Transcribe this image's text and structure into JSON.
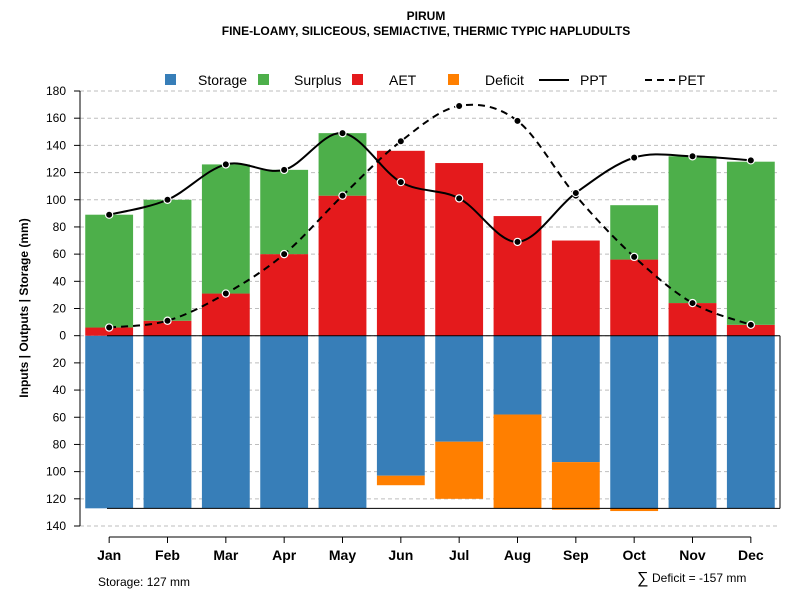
{
  "chart_data": {
    "type": "bar",
    "title": "PIRUM",
    "subtitle": "FINE-LOAMY, SILICEOUS, SEMIACTIVE, THERMIC TYPIC HAPLUDULTS",
    "ylabel": "Inputs | Outputs | Storage     (mm)",
    "ylim": [
      -140,
      180
    ],
    "yticks": [
      180,
      160,
      140,
      120,
      100,
      80,
      60,
      40,
      20,
      0,
      -20,
      -40,
      -60,
      -80,
      -100,
      -120,
      -140
    ],
    "ytick_labels": [
      "180",
      "160",
      "140",
      "120",
      "100",
      "80",
      "60",
      "40",
      "20",
      "0",
      "20",
      "40",
      "60",
      "80",
      "100",
      "120",
      "140"
    ],
    "categories": [
      "Jan",
      "Feb",
      "Mar",
      "Apr",
      "May",
      "Jun",
      "Jul",
      "Aug",
      "Sep",
      "Oct",
      "Nov",
      "Dec"
    ],
    "colors": {
      "storage": "#377EB8",
      "surplus": "#4DAF4A",
      "aet": "#E41A1C",
      "deficit": "#FF7F00",
      "line": "#000000",
      "grid": "#BEBEBE"
    },
    "legend": {
      "position": "top",
      "entries": [
        {
          "label": "Storage",
          "kind": "box",
          "color": "#377EB8"
        },
        {
          "label": "Surplus",
          "kind": "box",
          "color": "#4DAF4A"
        },
        {
          "label": "AET",
          "kind": "box",
          "color": "#E41A1C"
        },
        {
          "label": "Deficit",
          "kind": "box",
          "color": "#FF7F00"
        },
        {
          "label": "PPT",
          "kind": "solid"
        },
        {
          "label": "PET",
          "kind": "dashed"
        }
      ]
    },
    "series": [
      {
        "name": "AET",
        "values": [
          6,
          11,
          31,
          60,
          103,
          136,
          127,
          88,
          70,
          56,
          24,
          8
        ]
      },
      {
        "name": "Surplus",
        "values": [
          83,
          89,
          95,
          62,
          46,
          0,
          0,
          0,
          0,
          40,
          108,
          120
        ]
      },
      {
        "name": "Storage",
        "values": [
          -127,
          -127,
          -127,
          -127,
          -127,
          -103,
          -78,
          -58,
          -93,
          -127,
          -127,
          -127
        ]
      },
      {
        "name": "Deficit",
        "values": [
          0,
          0,
          0,
          0,
          0,
          -7,
          -42,
          -69,
          -35,
          -2,
          0,
          0
        ]
      },
      {
        "name": "PPT",
        "values": [
          89,
          100,
          126,
          122,
          149,
          113,
          101,
          69,
          105,
          131,
          132,
          129
        ]
      },
      {
        "name": "PET",
        "values": [
          6,
          11,
          31,
          60,
          103,
          143,
          169,
          158,
          103,
          58,
          24,
          8
        ]
      }
    ],
    "storage_line": -127,
    "annotations": {
      "storage": "Storage: 127 mm",
      "deficit_symbol": "∑",
      "deficit": "Deficit = -157 mm"
    }
  }
}
